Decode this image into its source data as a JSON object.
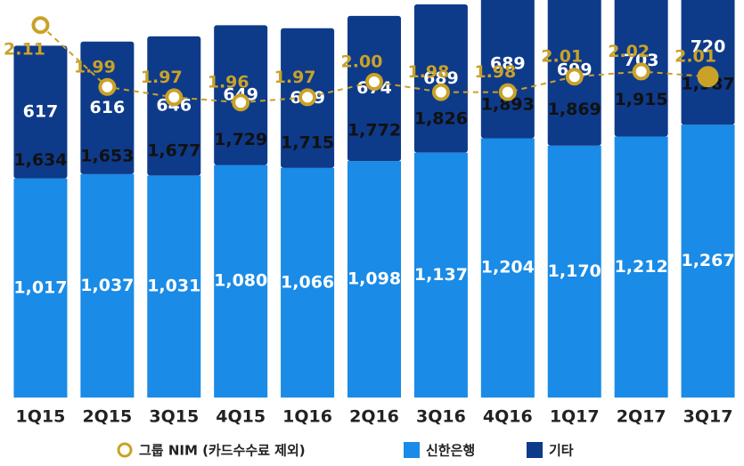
{
  "chart_data": {
    "type": "stacked-bar-line",
    "categories": [
      "1Q15",
      "2Q15",
      "3Q15",
      "4Q15",
      "1Q16",
      "2Q16",
      "3Q16",
      "4Q16",
      "1Q17",
      "2Q17",
      "3Q17"
    ],
    "series": [
      {
        "name": "신한은행",
        "color": "#1a8be6",
        "values": [
          1017,
          1037,
          1031,
          1080,
          1066,
          1098,
          1137,
          1204,
          1170,
          1212,
          1267
        ],
        "value_labels": [
          "1,017",
          "1,037",
          "1,031",
          "1,080",
          "1,066",
          "1,098",
          "1,137",
          "1,204",
          "1,170",
          "1,212",
          "1,267"
        ]
      },
      {
        "name": "기타",
        "color": "#0e3a8a",
        "values": [
          617,
          616,
          646,
          649,
          649,
          674,
          689,
          689,
          699,
          703,
          720
        ]
      },
      {
        "name": "그룹 NIM (카드수수료 제외)",
        "color": "#c9a227",
        "axis": "y2",
        "type": "line",
        "values": [
          2.11,
          1.99,
          1.97,
          1.96,
          1.97,
          2.0,
          1.98,
          1.98,
          2.01,
          2.02,
          2.01
        ],
        "value_labels": [
          "2.11",
          "1.99",
          "1.97",
          "1.96",
          "1.97",
          "2.00",
          "1.98",
          "1.98",
          "2.01",
          "2.02",
          "2.01"
        ]
      }
    ],
    "totals": {
      "values": [
        1634,
        1653,
        1677,
        1729,
        1715,
        1772,
        1826,
        1893,
        1869,
        1915,
        1987
      ],
      "value_labels": [
        "1,634",
        "1,653",
        "1,677",
        "1,729",
        "1,715",
        "1,772",
        "1,826",
        "1,893",
        "1,869",
        "1,915",
        "1,987"
      ]
    },
    "ylim": [
      600,
      2000
    ],
    "y2lim": [
      1.9,
      2.15
    ]
  }
}
